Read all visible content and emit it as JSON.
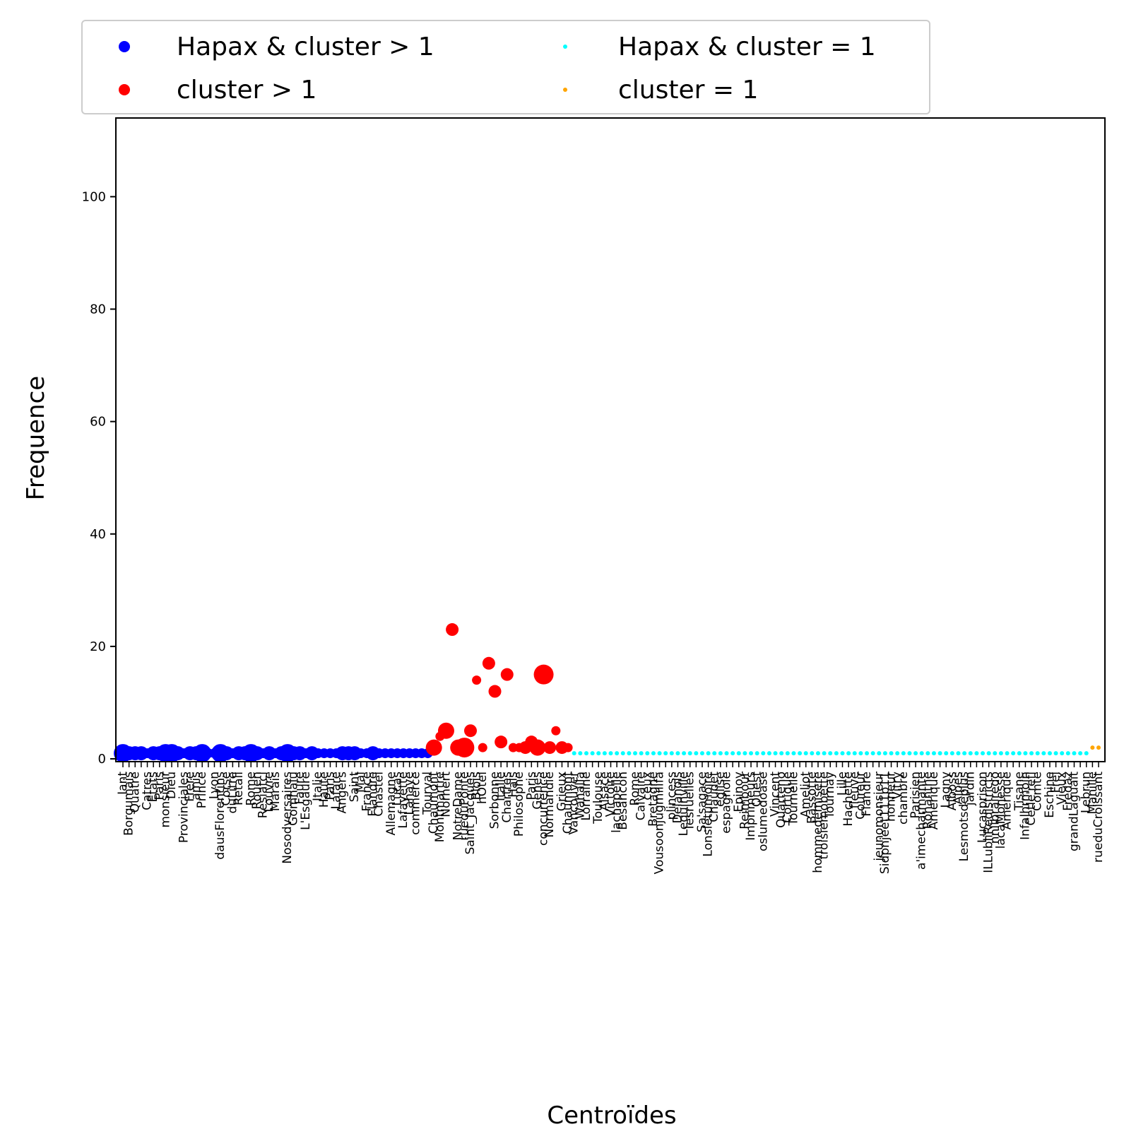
{
  "chart_data": {
    "type": "scatter",
    "xlabel": "Centroïdes",
    "ylabel": "Frequence",
    "ylim": [
      -0.5,
      114
    ],
    "yticks": [
      0,
      20,
      40,
      60,
      80,
      100
    ],
    "legend_placement": "top-left, above the plot, 2 columns",
    "grid": false,
    "x": [
      "Iant",
      "Borgumais",
      "Quatre",
      "Catres",
      "Etats",
      "Paris",
      "monsieur",
      "Dieu",
      "Provinciales",
      "Frere",
      "amis",
      "Prince",
      "Lyon",
      "dausFlorentins",
      "Corse",
      "duLitre",
      "Retail",
      "Rome",
      "Rouen",
      "Resiatcl",
      "Louvre",
      "Marais",
      "Nosodversaires",
      "Gomhalu",
      "Faure",
      "L'Esgaure",
      "Italie",
      "Haute",
      "Paris",
      "Lafare",
      "Angers",
      "Saint",
      "Mal",
      "France",
      "Flandre",
      "Chastel",
      "Allemagne",
      "Lucas",
      "Lafayette",
      "Lahaye",
      "commerce",
      "Tourval",
      "Chaumont",
      "Montmartre",
      "Norhert",
      "NotreDame",
      "rueduPonte",
      "Saint_Jacques",
      "Blois",
      "hOtel",
      "Sorbonne",
      "Italie",
      "Chartres",
      "Hals",
      "Philosophe",
      "Paris",
      "Genes",
      "concurrence",
      "Normandie",
      "Grieux",
      "Chaumont",
      "Vancouver",
      "Wahalla",
      "Lorraine",
      "Toulouse",
      "Alsace",
      "Victoire",
      "lachapelle",
      "Besancon",
      "Rome",
      "Calvaire",
      "ceux",
      "Bretagne",
      "Vousoonjugmilifa",
      "plincess",
      "Delanois",
      "Lequinville",
      "Iesruelles",
      "Sa'sagace",
      "Lonsletumoire",
      "Chaudet",
      "eglise",
      "espagnole",
      "Epinoy",
      "Reimbour",
      "Imprimeurs",
      "Ouest",
      "osIumedoase",
      "Vincent",
      "Quarteno",
      "Cortique",
      "Tournelle",
      "Ameliot",
      "Bassotte",
      "hommedemisere",
      "troisiemobette",
      "Tournay",
      "Lille",
      "Hachette",
      "fleuve",
      "Coureur",
      "Flandre",
      "jeunomonsieur",
      "Sidpnjeet111p11",
      "honneur",
      "Vitry",
      "chambre",
      "Parisien",
      "a'imecharmante",
      "Rohanthe",
      "Amerique",
      "Lagny",
      "Alboss",
      "Alpes",
      "Lesmotsdeplus",
      "jardin",
      "Lucasprison",
      "ILLubliRedistricts",
      "nnlibrairedo",
      "lacaMonesse",
      "Amerique",
      "Tisane",
      "Infalhrmoin",
      "Cetle'refl",
      "Comte",
      "Eschine",
      "Frel",
      "Vieux",
      "Fredaz",
      "grandLaguait",
      "Lebrun",
      "Manille",
      "rueduCroissant"
    ],
    "series": [
      {
        "name": "Hapax & cluster > 1",
        "color": "#0000ff",
        "values": [
          1,
          1,
          1,
          1,
          1,
          1,
          1,
          1,
          1,
          1,
          1,
          1,
          1,
          1,
          1,
          1,
          1,
          1,
          1,
          1,
          1,
          1,
          1,
          1,
          1,
          1,
          1,
          1,
          1,
          1,
          1,
          1,
          1,
          1,
          1,
          1,
          1,
          1,
          1,
          1,
          1,
          1,
          1,
          1,
          1,
          1,
          1,
          1,
          1,
          1,
          1
        ],
        "sizes": [
          3,
          2,
          2,
          2,
          1,
          2,
          2,
          3,
          3,
          2,
          1,
          2,
          2,
          3,
          1,
          1,
          3,
          2,
          1,
          2,
          2,
          3,
          2,
          1,
          2,
          1,
          2,
          3,
          2,
          2,
          1,
          2,
          1,
          1,
          1,
          1,
          2,
          2,
          2,
          1,
          1,
          2,
          1,
          1,
          1,
          1,
          1,
          1,
          1,
          1,
          1
        ]
      },
      {
        "name": "cluster > 1",
        "color": "#ff0000",
        "values": [
          2,
          4,
          5,
          23,
          2,
          2,
          5,
          14,
          2,
          17,
          12,
          3,
          15,
          2,
          2,
          2,
          3,
          2,
          15,
          2,
          5,
          2,
          2
        ],
        "sizes": [
          3,
          1,
          3,
          2,
          3,
          4,
          2,
          1,
          1,
          2,
          2,
          2,
          2,
          1,
          1,
          2,
          2,
          3,
          4,
          2,
          1,
          2,
          1
        ]
      },
      {
        "name": "Hapax & cluster = 1",
        "color": "#00ffff",
        "count": 85,
        "value": 1
      },
      {
        "name": "cluster = 1",
        "color": "#ffa500",
        "count": 2,
        "value": 2
      }
    ]
  }
}
